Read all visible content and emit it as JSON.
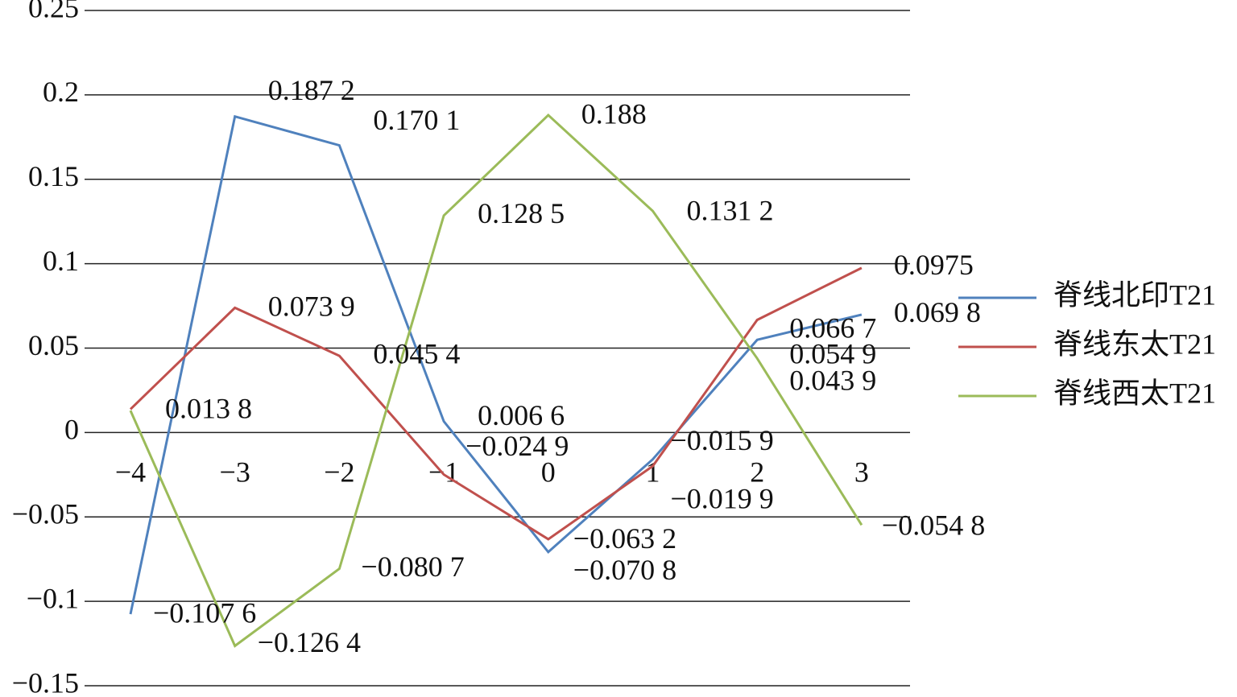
{
  "chart_data": {
    "type": "line",
    "categories": [
      "−4",
      "−3",
      "−2",
      "−1",
      "0",
      "1",
      "2",
      "3"
    ],
    "series": [
      {
        "name": "脊线北印T21",
        "color": "#4f81bd",
        "values": [
          -0.1076,
          0.1872,
          0.1701,
          0.0066,
          -0.0708,
          -0.0159,
          0.0549,
          0.0698
        ],
        "value_labels": [
          "−0.107 6",
          "0.187 2",
          "0.170 1",
          "0.006 6",
          "−0.070 8",
          "−0.015 9",
          "0.054 9",
          "0.069 8"
        ]
      },
      {
        "name": "脊线东太T21",
        "color": "#c0504d",
        "values": [
          0.0138,
          0.0739,
          0.0454,
          -0.0249,
          -0.0632,
          -0.0199,
          0.0667,
          0.0975
        ],
        "value_labels": [
          "0.013 8",
          "0.073 9",
          "0.045 4",
          "−0.024 9",
          "−0.063 2",
          "−0.019 9",
          "0.066 7",
          "0.0975"
        ]
      },
      {
        "name": "脊线西太T21",
        "color": "#9bbb59",
        "values": [
          0.013,
          -0.1264,
          -0.0807,
          0.1285,
          0.188,
          0.1312,
          0.0439,
          -0.0548
        ],
        "value_labels": [
          null,
          "−0.126 4",
          "−0.080 7",
          "0.128 5",
          "0.188",
          "0.131 2",
          "0.043 9",
          "−0.054 8"
        ]
      }
    ],
    "ylim": [
      -0.15,
      0.25
    ],
    "yticks": [
      {
        "value": -0.15,
        "label": "−0.15"
      },
      {
        "value": -0.1,
        "label": "−0.1"
      },
      {
        "value": -0.05,
        "label": "−0.05"
      },
      0,
      0.05,
      0.1,
      0.15,
      0.2,
      0.25
    ],
    "grid": true,
    "legend": "right"
  }
}
